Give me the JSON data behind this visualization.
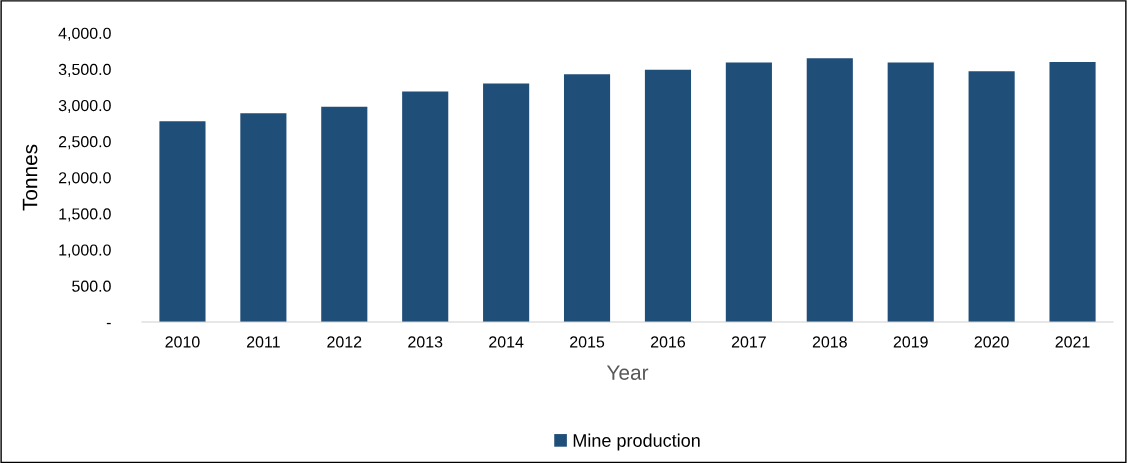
{
  "chart_data": {
    "type": "bar",
    "xlabel": "Year",
    "ylabel": "Tonnes",
    "categories": [
      "2010",
      "2011",
      "2012",
      "2013",
      "2014",
      "2015",
      "2016",
      "2017",
      "2018",
      "2019",
      "2020",
      "2021"
    ],
    "series": [
      {
        "name": "Mine production",
        "color": "#1f4e79",
        "values": [
          2780,
          2890,
          2980,
          3190,
          3300,
          3430,
          3490,
          3590,
          3650,
          3590,
          3470,
          3600
        ]
      }
    ],
    "ylim": [
      0,
      4000
    ],
    "yticks": [
      {
        "value": 0,
        "label": "-"
      },
      {
        "value": 500,
        "label": "500.0"
      },
      {
        "value": 1000,
        "label": "1,000.0"
      },
      {
        "value": 1500,
        "label": "1,500.0"
      },
      {
        "value": 2000,
        "label": "2,000.0"
      },
      {
        "value": 2500,
        "label": "2,500.0"
      },
      {
        "value": 3000,
        "label": "3,000.0"
      },
      {
        "value": 3500,
        "label": "3,500.0"
      },
      {
        "value": 4000,
        "label": "4,000.0"
      }
    ],
    "grid": false,
    "legend": "bottom"
  }
}
